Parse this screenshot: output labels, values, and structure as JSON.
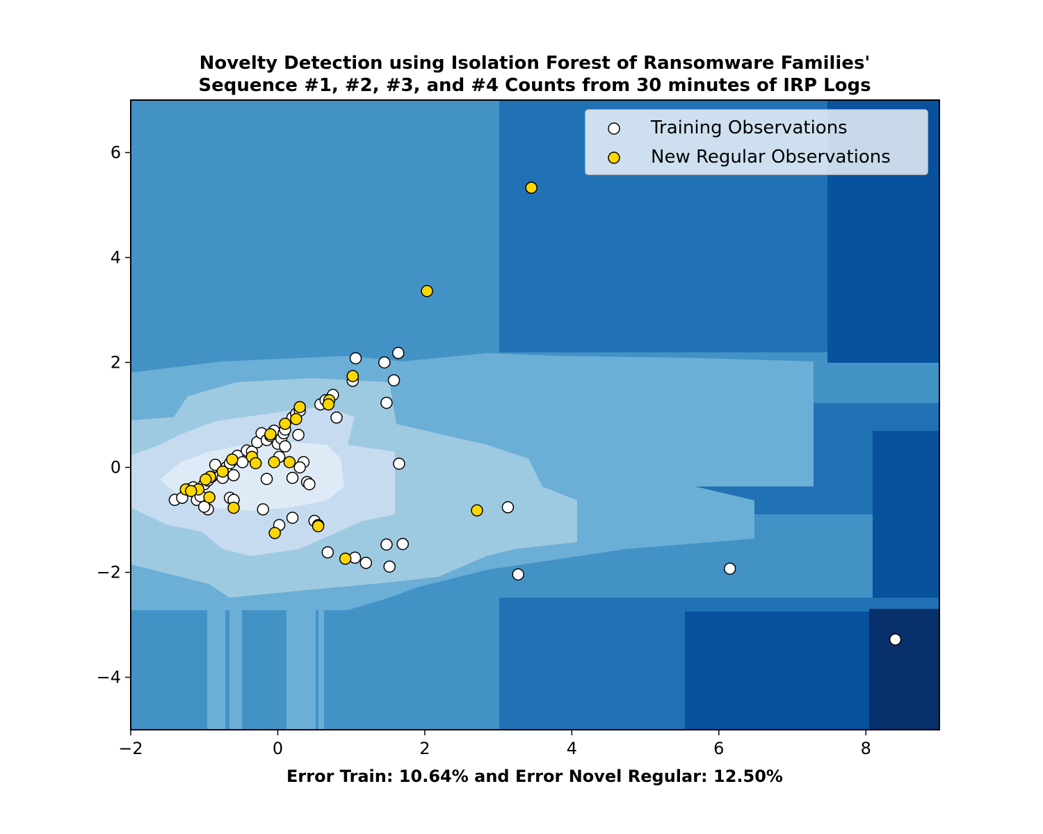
{
  "chart_data": {
    "type": "scatter",
    "title_lines": [
      "Novelty Detection using Isolation Forest of Ransomware Families'",
      "Sequence #1, #2, #3, and #4 Counts from 30 minutes of IRP Logs"
    ],
    "xlabel": "Error Train: 10.64% and Error Novel Regular: 12.50%",
    "ylabel": "",
    "xlim": [
      -2,
      9
    ],
    "ylim": [
      -5,
      7
    ],
    "x_ticks": [
      -2,
      0,
      2,
      4,
      6,
      8
    ],
    "x_tick_labels": [
      "−2",
      "0",
      "2",
      "4",
      "6",
      "8"
    ],
    "y_ticks": [
      -4,
      -2,
      0,
      2,
      4,
      6
    ],
    "y_tick_labels": [
      "−4",
      "−2",
      "0",
      "2",
      "4",
      "6"
    ],
    "grid": false,
    "legend_position": "top-right",
    "background_contour": {
      "description": "decision function contour, Blues colormap",
      "level_colors": [
        "#08306b",
        "#08519c",
        "#2171b5",
        "#4292c6",
        "#6baed6",
        "#9ecae1",
        "#c6dbef",
        "#deebf7"
      ]
    },
    "series": [
      {
        "name": "Training Observations",
        "color": "#ffffff",
        "edge_color": "#000000",
        "points": [
          [
            -1.4,
            -0.62
          ],
          [
            -1.3,
            -0.58
          ],
          [
            -1.22,
            -0.42
          ],
          [
            -1.15,
            -0.38
          ],
          [
            -1.1,
            -0.62
          ],
          [
            -1.05,
            -0.55
          ],
          [
            -1.0,
            -0.32
          ],
          [
            -0.95,
            -0.25
          ],
          [
            -0.9,
            -0.18
          ],
          [
            -0.85,
            0.05
          ],
          [
            -0.78,
            -0.15
          ],
          [
            -0.75,
            -0.2
          ],
          [
            -0.7,
            0.0
          ],
          [
            -0.65,
            0.08
          ],
          [
            -0.6,
            0.15
          ],
          [
            -0.55,
            0.22
          ],
          [
            -0.48,
            0.1
          ],
          [
            -0.42,
            0.32
          ],
          [
            -0.35,
            0.3
          ],
          [
            -0.28,
            0.48
          ],
          [
            -0.22,
            0.65
          ],
          [
            -0.15,
            0.52
          ],
          [
            -0.1,
            0.6
          ],
          [
            -0.05,
            0.7
          ],
          [
            0.0,
            0.45
          ],
          [
            0.05,
            0.55
          ],
          [
            0.08,
            0.65
          ],
          [
            0.1,
            0.72
          ],
          [
            0.1,
            0.4
          ],
          [
            0.2,
            0.95
          ],
          [
            0.25,
            1.02
          ],
          [
            0.3,
            1.08
          ],
          [
            0.28,
            0.62
          ],
          [
            0.35,
            0.1
          ],
          [
            0.4,
            -0.28
          ],
          [
            0.43,
            -0.32
          ],
          [
            0.2,
            -0.2
          ],
          [
            0.3,
            0.0
          ],
          [
            0.02,
            0.2
          ],
          [
            -0.15,
            -0.22
          ],
          [
            -0.2,
            -0.8
          ],
          [
            0.02,
            -1.1
          ],
          [
            0.2,
            -0.96
          ],
          [
            0.5,
            -1.02
          ],
          [
            0.55,
            -1.1
          ],
          [
            0.68,
            -1.62
          ],
          [
            1.05,
            -1.72
          ],
          [
            1.2,
            -1.82
          ],
          [
            1.48,
            -1.47
          ],
          [
            1.52,
            -1.89
          ],
          [
            1.7,
            -1.46
          ],
          [
            0.8,
            0.95
          ],
          [
            0.58,
            1.2
          ],
          [
            0.65,
            1.28
          ],
          [
            0.75,
            1.38
          ],
          [
            1.02,
            1.65
          ],
          [
            1.06,
            2.08
          ],
          [
            1.45,
            2.0
          ],
          [
            1.58,
            1.66
          ],
          [
            1.64,
            2.18
          ],
          [
            1.48,
            1.23
          ],
          [
            1.65,
            0.07
          ],
          [
            -0.65,
            -0.58
          ],
          [
            -0.6,
            -0.62
          ],
          [
            -0.6,
            -0.15
          ],
          [
            -0.95,
            -0.8
          ],
          [
            -1.0,
            -0.75
          ],
          [
            3.13,
            -0.76
          ],
          [
            3.27,
            -2.04
          ],
          [
            6.15,
            -1.93
          ],
          [
            8.4,
            -3.28
          ]
        ]
      },
      {
        "name": "New Regular Observations",
        "color": "#ffd700",
        "edge_color": "#000000",
        "points": [
          [
            3.45,
            5.33
          ],
          [
            2.03,
            3.36
          ],
          [
            2.71,
            -0.82
          ],
          [
            1.02,
            1.74
          ],
          [
            0.7,
            1.28
          ],
          [
            0.69,
            1.2
          ],
          [
            0.3,
            1.15
          ],
          [
            0.25,
            0.92
          ],
          [
            0.1,
            0.83
          ],
          [
            -0.1,
            0.63
          ],
          [
            -0.35,
            0.2
          ],
          [
            -0.3,
            0.08
          ],
          [
            -0.05,
            0.1
          ],
          [
            0.16,
            0.1
          ],
          [
            -0.62,
            0.15
          ],
          [
            -0.75,
            -0.08
          ],
          [
            -0.92,
            -0.18
          ],
          [
            -0.98,
            -0.23
          ],
          [
            -1.08,
            -0.42
          ],
          [
            -1.25,
            -0.42
          ],
          [
            -1.18,
            -0.45
          ],
          [
            -0.93,
            -0.57
          ],
          [
            -0.6,
            -0.77
          ],
          [
            -0.04,
            -1.25
          ],
          [
            0.55,
            -1.12
          ],
          [
            0.92,
            -1.74
          ]
        ]
      }
    ]
  }
}
